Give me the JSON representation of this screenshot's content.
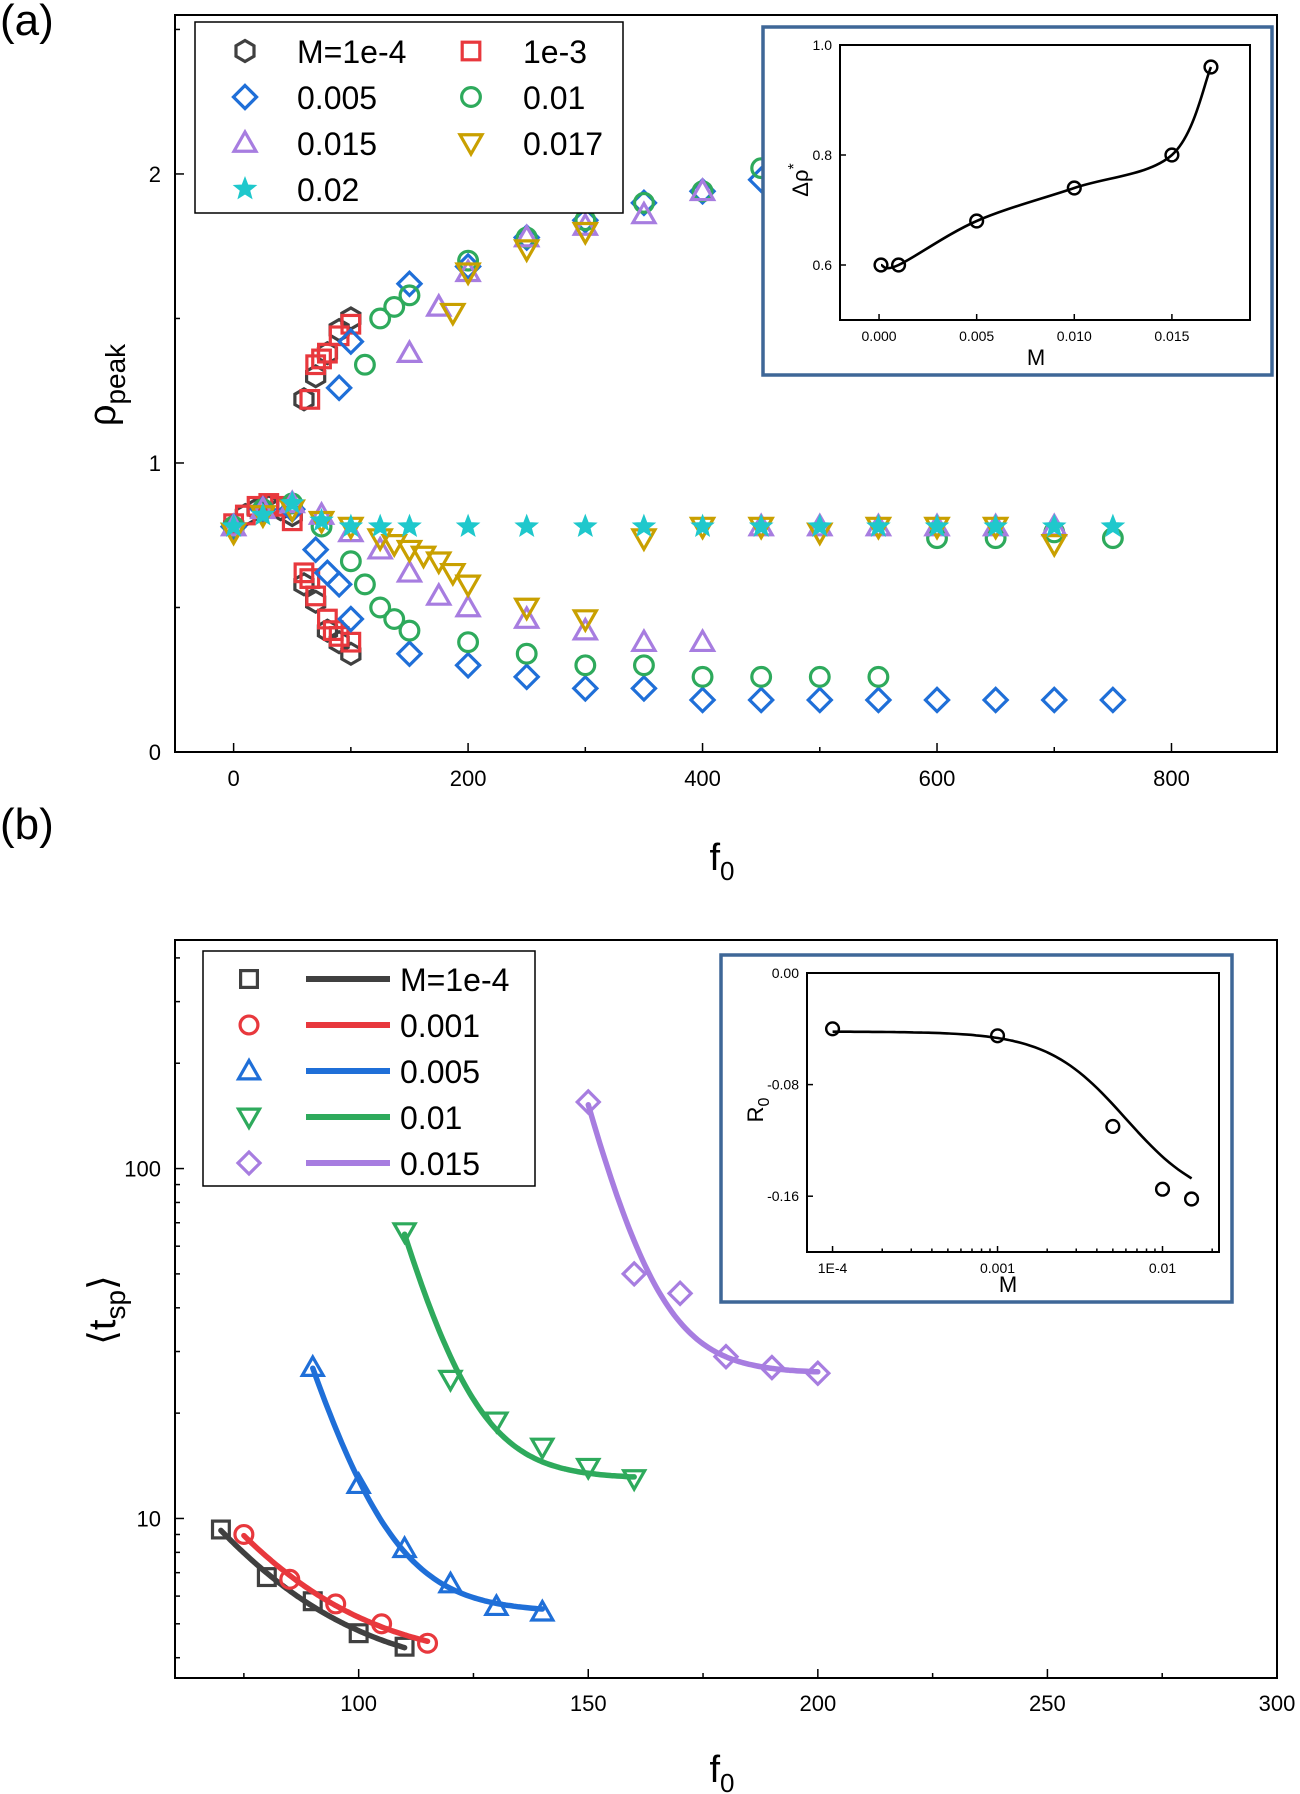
{
  "labels": {
    "a": "(a)",
    "b": "(b)"
  },
  "colors": {
    "m1e4": "#404040",
    "m1e3": "#e8383d",
    "m005": "#1f6fd8",
    "m01": "#2eaa5c",
    "m015": "#a77de0",
    "m017": "#c9a000",
    "m02": "#1fc8cc",
    "inset_frame": "#3e6797"
  },
  "legend_a": [
    {
      "label": "M=1e-4",
      "marker": "hexagon",
      "color": "#404040"
    },
    {
      "label": "1e-3",
      "marker": "square",
      "color": "#e8383d"
    },
    {
      "label": "0.005",
      "marker": "diamond",
      "color": "#1f6fd8"
    },
    {
      "label": "0.01",
      "marker": "circle",
      "color": "#2eaa5c"
    },
    {
      "label": "0.015",
      "marker": "triangle-up",
      "color": "#a77de0"
    },
    {
      "label": "0.017",
      "marker": "triangle-down",
      "color": "#c9a000"
    },
    {
      "label": "0.02",
      "marker": "star",
      "color": "#1fc8cc"
    }
  ],
  "legend_b": [
    {
      "label": "M=1e-4",
      "marker": "square",
      "color": "#404040"
    },
    {
      "label": "0.001",
      "marker": "circle",
      "color": "#e8383d"
    },
    {
      "label": "0.005",
      "marker": "triangle-up",
      "color": "#1f6fd8"
    },
    {
      "label": "0.01",
      "marker": "triangle-down",
      "color": "#2eaa5c"
    },
    {
      "label": "0.015",
      "marker": "diamond",
      "color": "#a77de0"
    }
  ],
  "chart_data": [
    {
      "id": "a-main",
      "type": "scatter",
      "xlabel": "f",
      "xlabel_sub": "0",
      "ylabel": "ρ",
      "ylabel_sub": "peak",
      "xlim": [
        -50,
        890
      ],
      "ylim": [
        0,
        2.55
      ],
      "xticks": [
        0,
        200,
        400,
        600,
        800
      ],
      "yticks": [
        0,
        1,
        2
      ],
      "series": [
        {
          "name": "M=1e-4",
          "marker": "hexagon",
          "color": "#404040",
          "x": [
            0,
            10,
            20,
            30,
            40,
            50,
            60,
            70,
            80,
            90,
            100,
            60,
            70,
            80,
            90,
            100
          ],
          "y": [
            0.78,
            0.82,
            0.84,
            0.85,
            0.84,
            0.82,
            0.58,
            0.52,
            0.42,
            0.38,
            0.34,
            1.22,
            1.3,
            1.38,
            1.46,
            1.5
          ]
        },
        {
          "name": "1e-3",
          "marker": "square",
          "color": "#e8383d",
          "x": [
            0,
            10,
            20,
            30,
            40,
            50,
            60,
            65,
            70,
            80,
            85,
            90,
            100,
            65,
            70,
            75,
            80,
            90,
            100
          ],
          "y": [
            0.79,
            0.82,
            0.85,
            0.86,
            0.85,
            0.8,
            0.62,
            0.6,
            0.54,
            0.46,
            0.42,
            0.4,
            0.38,
            1.22,
            1.34,
            1.36,
            1.38,
            1.44,
            1.48
          ]
        },
        {
          "name": "0.005",
          "marker": "diamond",
          "color": "#1f6fd8",
          "x": [
            0,
            25,
            50,
            70,
            80,
            90,
            100,
            150,
            200,
            250,
            300,
            350,
            400,
            450,
            500,
            550,
            600,
            650,
            700,
            750,
            90,
            100,
            150,
            200,
            250,
            300,
            350,
            400,
            450
          ],
          "y": [
            0.78,
            0.84,
            0.84,
            0.7,
            0.62,
            0.58,
            0.46,
            0.34,
            0.3,
            0.26,
            0.22,
            0.22,
            0.18,
            0.18,
            0.18,
            0.18,
            0.18,
            0.18,
            0.18,
            0.18,
            1.26,
            1.42,
            1.62,
            1.68,
            1.78,
            1.84,
            1.9,
            1.94,
            1.98
          ]
        },
        {
          "name": "0.01",
          "marker": "circle",
          "color": "#2eaa5c",
          "x": [
            0,
            25,
            50,
            75,
            100,
            112,
            125,
            137,
            150,
            200,
            250,
            300,
            350,
            400,
            450,
            500,
            550,
            600,
            650,
            700,
            750,
            112,
            125,
            137,
            150,
            200,
            250,
            300,
            350,
            400,
            450
          ],
          "y": [
            0.78,
            0.84,
            0.86,
            0.78,
            0.66,
            0.58,
            0.5,
            0.46,
            0.42,
            0.38,
            0.34,
            0.3,
            0.3,
            0.26,
            0.26,
            0.26,
            0.26,
            0.74,
            0.74,
            0.76,
            0.74,
            1.34,
            1.5,
            1.54,
            1.58,
            1.7,
            1.78,
            1.84,
            1.9,
            1.94,
            2.02
          ]
        },
        {
          "name": "0.015",
          "marker": "triangle-up",
          "color": "#a77de0",
          "x": [
            0,
            25,
            50,
            75,
            100,
            125,
            150,
            175,
            200,
            250,
            300,
            350,
            400,
            450,
            500,
            550,
            600,
            650,
            700,
            150,
            175,
            200,
            250,
            300,
            350,
            400
          ],
          "y": [
            0.78,
            0.84,
            0.86,
            0.82,
            0.76,
            0.7,
            0.62,
            0.54,
            0.5,
            0.46,
            0.42,
            0.38,
            0.38,
            0.78,
            0.78,
            0.78,
            0.78,
            0.78,
            0.78,
            1.38,
            1.54,
            1.66,
            1.78,
            1.82,
            1.86,
            1.94
          ]
        },
        {
          "name": "0.017",
          "marker": "triangle-down",
          "color": "#c9a000",
          "x": [
            0,
            25,
            50,
            75,
            100,
            125,
            137,
            150,
            162,
            175,
            187,
            200,
            250,
            300,
            350,
            400,
            450,
            500,
            550,
            600,
            650,
            700,
            187,
            200,
            250,
            300
          ],
          "y": [
            0.76,
            0.82,
            0.84,
            0.8,
            0.78,
            0.74,
            0.72,
            0.7,
            0.68,
            0.66,
            0.62,
            0.58,
            0.5,
            0.46,
            0.74,
            0.78,
            0.78,
            0.76,
            0.78,
            0.78,
            0.78,
            0.72,
            1.52,
            1.66,
            1.74,
            1.8
          ]
        },
        {
          "name": "0.02",
          "marker": "star",
          "color": "#1fc8cc",
          "x": [
            0,
            25,
            50,
            75,
            100,
            125,
            150,
            200,
            250,
            300,
            350,
            400,
            450,
            500,
            550,
            600,
            650,
            700,
            750
          ],
          "y": [
            0.78,
            0.82,
            0.86,
            0.8,
            0.78,
            0.78,
            0.78,
            0.78,
            0.78,
            0.78,
            0.78,
            0.78,
            0.78,
            0.78,
            0.78,
            0.78,
            0.78,
            0.78,
            0.78
          ]
        }
      ]
    },
    {
      "id": "a-inset",
      "type": "line",
      "xlabel": "M",
      "ylabel": "Δρ",
      "ylabel_sup": "*",
      "xlim": [
        -0.002,
        0.019
      ],
      "ylim": [
        0.5,
        1.0
      ],
      "xticks": [
        "0.000",
        "0.005",
        "0.010",
        "0.015"
      ],
      "yticks": [
        "0.6",
        "0.8",
        "1.0"
      ],
      "x": [
        0.0001,
        0.001,
        0.005,
        0.01,
        0.015,
        0.017
      ],
      "y": [
        0.6,
        0.6,
        0.68,
        0.74,
        0.8,
        0.96
      ]
    },
    {
      "id": "b-main",
      "type": "line",
      "xlabel": "f",
      "xlabel_sub": "0",
      "ylabel": "⟨t",
      "ylabel_sub": "sp",
      "ylabel_end": "⟩",
      "log_y": true,
      "xlim": [
        60,
        300
      ],
      "ylim": [
        3.5,
        450
      ],
      "xticks": [
        100,
        150,
        200,
        250,
        300
      ],
      "yticks": [
        10,
        100
      ],
      "series": [
        {
          "name": "M=1e-4",
          "marker": "square",
          "color": "#404040",
          "x": [
            70,
            80,
            90,
            100,
            110
          ],
          "y": [
            9.3,
            6.8,
            5.8,
            4.7,
            4.3
          ]
        },
        {
          "name": "0.001",
          "marker": "circle",
          "color": "#e8383d",
          "x": [
            75,
            85,
            95,
            105,
            115
          ],
          "y": [
            9.0,
            6.7,
            5.7,
            5.0,
            4.4
          ]
        },
        {
          "name": "0.005",
          "marker": "triangle-up",
          "color": "#1f6fd8",
          "x": [
            90,
            100,
            110,
            120,
            130,
            140
          ],
          "y": [
            27,
            12.5,
            8.2,
            6.5,
            5.6,
            5.4
          ]
        },
        {
          "name": "0.01",
          "marker": "triangle-down",
          "color": "#2eaa5c",
          "x": [
            110,
            120,
            130,
            140,
            150,
            160
          ],
          "y": [
            66,
            25,
            19,
            16,
            14,
            13
          ]
        },
        {
          "name": "0.015",
          "marker": "diamond",
          "color": "#a77de0",
          "x": [
            150,
            160,
            170,
            180,
            190,
            200
          ],
          "y": [
            155,
            50,
            44,
            29,
            27,
            26
          ]
        }
      ]
    },
    {
      "id": "b-inset",
      "type": "line",
      "xlabel": "M",
      "ylabel": "R",
      "ylabel_sub": "0",
      "log_x": true,
      "xlim": [
        7e-05,
        0.022
      ],
      "ylim": [
        -0.2,
        0.0
      ],
      "xticks": [
        "1E-4",
        "0.001",
        "0.01"
      ],
      "yticks": [
        "0.00",
        "-0.08",
        "-0.16"
      ],
      "x": [
        0.0001,
        0.001,
        0.005,
        0.01,
        0.015
      ],
      "y": [
        -0.04,
        -0.045,
        -0.11,
        -0.155,
        -0.162
      ]
    }
  ]
}
